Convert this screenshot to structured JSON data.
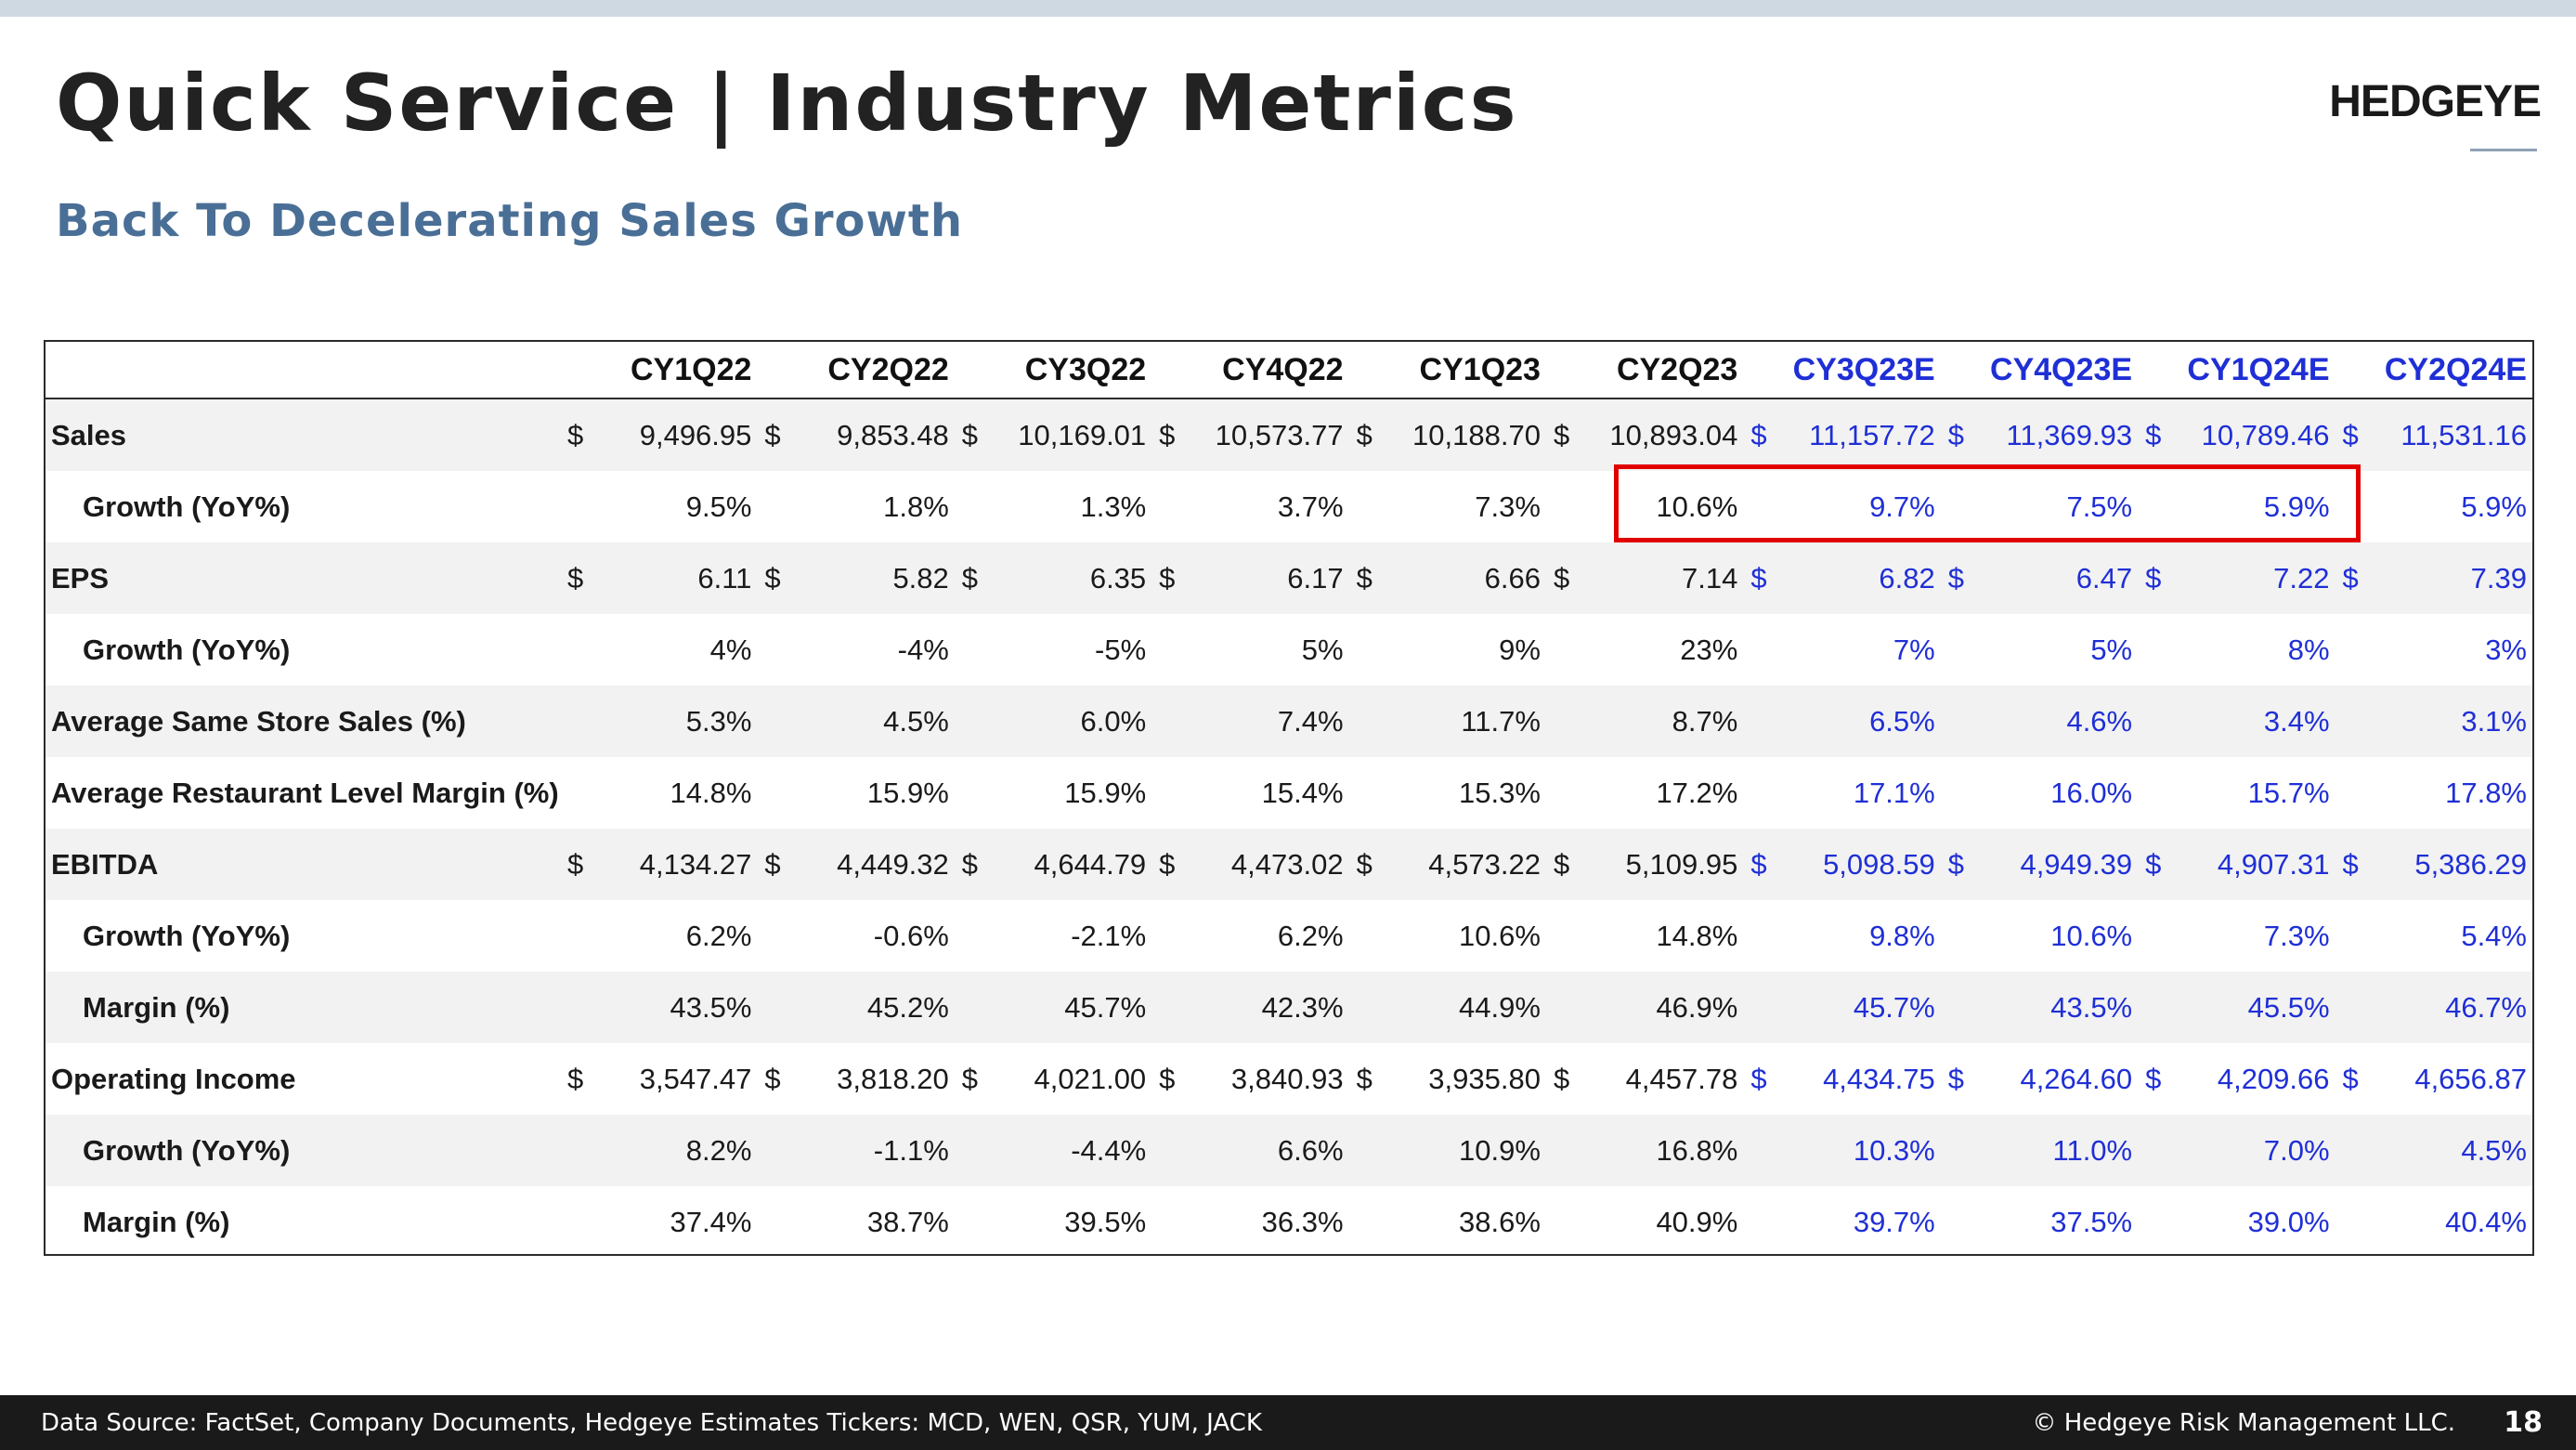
{
  "title": "Quick Service | Industry Metrics",
  "subtitle": "Back To Decelerating Sales Growth",
  "logo": "HEDGEYE",
  "colors": {
    "estimate": "#1f2fd6",
    "highlight": "#e00000",
    "subtitle": "#4a6f96"
  },
  "table": {
    "headers": [
      {
        "label": "CY1Q22",
        "estimate": false
      },
      {
        "label": "CY2Q22",
        "estimate": false
      },
      {
        "label": "CY3Q22",
        "estimate": false
      },
      {
        "label": "CY4Q22",
        "estimate": false
      },
      {
        "label": "CY1Q23",
        "estimate": false
      },
      {
        "label": "CY2Q23",
        "estimate": false
      },
      {
        "label": "CY3Q23E",
        "estimate": true
      },
      {
        "label": "CY4Q23E",
        "estimate": true
      },
      {
        "label": "CY1Q24E",
        "estimate": true
      },
      {
        "label": "CY2Q24E",
        "estimate": true
      }
    ],
    "rows": [
      {
        "label": "Sales",
        "sub": false,
        "currency": "$",
        "values": [
          "9,496.95",
          "9,853.48",
          "10,169.01",
          "10,573.77",
          "10,188.70",
          "10,893.04",
          "11,157.72",
          "11,369.93",
          "10,789.46",
          "11,531.16"
        ]
      },
      {
        "label": "Growth (YoY%)",
        "sub": true,
        "currency": "",
        "values": [
          "9.5%",
          "1.8%",
          "1.3%",
          "3.7%",
          "7.3%",
          "10.6%",
          "9.7%",
          "7.5%",
          "5.9%",
          "5.9%"
        ]
      },
      {
        "label": "EPS",
        "sub": false,
        "currency": "$",
        "values": [
          "6.11",
          "5.82",
          "6.35",
          "6.17",
          "6.66",
          "7.14",
          "6.82",
          "6.47",
          "7.22",
          "7.39"
        ]
      },
      {
        "label": "Growth (YoY%)",
        "sub": true,
        "currency": "",
        "values": [
          "4%",
          "-4%",
          "-5%",
          "5%",
          "9%",
          "23%",
          "7%",
          "5%",
          "8%",
          "3%"
        ]
      },
      {
        "label": "Average Same Store Sales (%)",
        "sub": false,
        "currency": "",
        "values": [
          "5.3%",
          "4.5%",
          "6.0%",
          "7.4%",
          "11.7%",
          "8.7%",
          "6.5%",
          "4.6%",
          "3.4%",
          "3.1%"
        ]
      },
      {
        "label": "Average Restaurant Level Margin (%)",
        "sub": false,
        "currency": "",
        "values": [
          "14.8%",
          "15.9%",
          "15.9%",
          "15.4%",
          "15.3%",
          "17.2%",
          "17.1%",
          "16.0%",
          "15.7%",
          "17.8%"
        ]
      },
      {
        "label": "EBITDA",
        "sub": false,
        "currency": "$",
        "values": [
          "4,134.27",
          "4,449.32",
          "4,644.79",
          "4,473.02",
          "4,573.22",
          "5,109.95",
          "5,098.59",
          "4,949.39",
          "4,907.31",
          "5,386.29"
        ]
      },
      {
        "label": "Growth (YoY%)",
        "sub": true,
        "currency": "",
        "values": [
          "6.2%",
          "-0.6%",
          "-2.1%",
          "6.2%",
          "10.6%",
          "14.8%",
          "9.8%",
          "10.6%",
          "7.3%",
          "5.4%"
        ]
      },
      {
        "label": "Margin (%)",
        "sub": true,
        "currency": "",
        "values": [
          "43.5%",
          "45.2%",
          "45.7%",
          "42.3%",
          "44.9%",
          "46.9%",
          "45.7%",
          "43.5%",
          "45.5%",
          "46.7%"
        ]
      },
      {
        "label": "Operating Income",
        "sub": false,
        "currency": "$",
        "values": [
          "3,547.47",
          "3,818.20",
          "4,021.00",
          "3,840.93",
          "3,935.80",
          "4,457.78",
          "4,434.75",
          "4,264.60",
          "4,209.66",
          "4,656.87"
        ]
      },
      {
        "label": "Growth (YoY%)",
        "sub": true,
        "currency": "",
        "values": [
          "8.2%",
          "-1.1%",
          "-4.4%",
          "6.6%",
          "10.9%",
          "16.8%",
          "10.3%",
          "11.0%",
          "7.0%",
          "4.5%"
        ]
      },
      {
        "label": "Margin (%)",
        "sub": true,
        "currency": "",
        "values": [
          "37.4%",
          "38.7%",
          "39.5%",
          "36.3%",
          "38.6%",
          "40.9%",
          "39.7%",
          "37.5%",
          "39.0%",
          "40.4%"
        ]
      }
    ]
  },
  "footer": {
    "source": "Data Source: FactSet, Company Documents, Hedgeye Estimates Tickers: MCD, WEN, QSR, YUM, JACK",
    "copyright": "© Hedgeye Risk Management LLC.",
    "page": "18"
  }
}
